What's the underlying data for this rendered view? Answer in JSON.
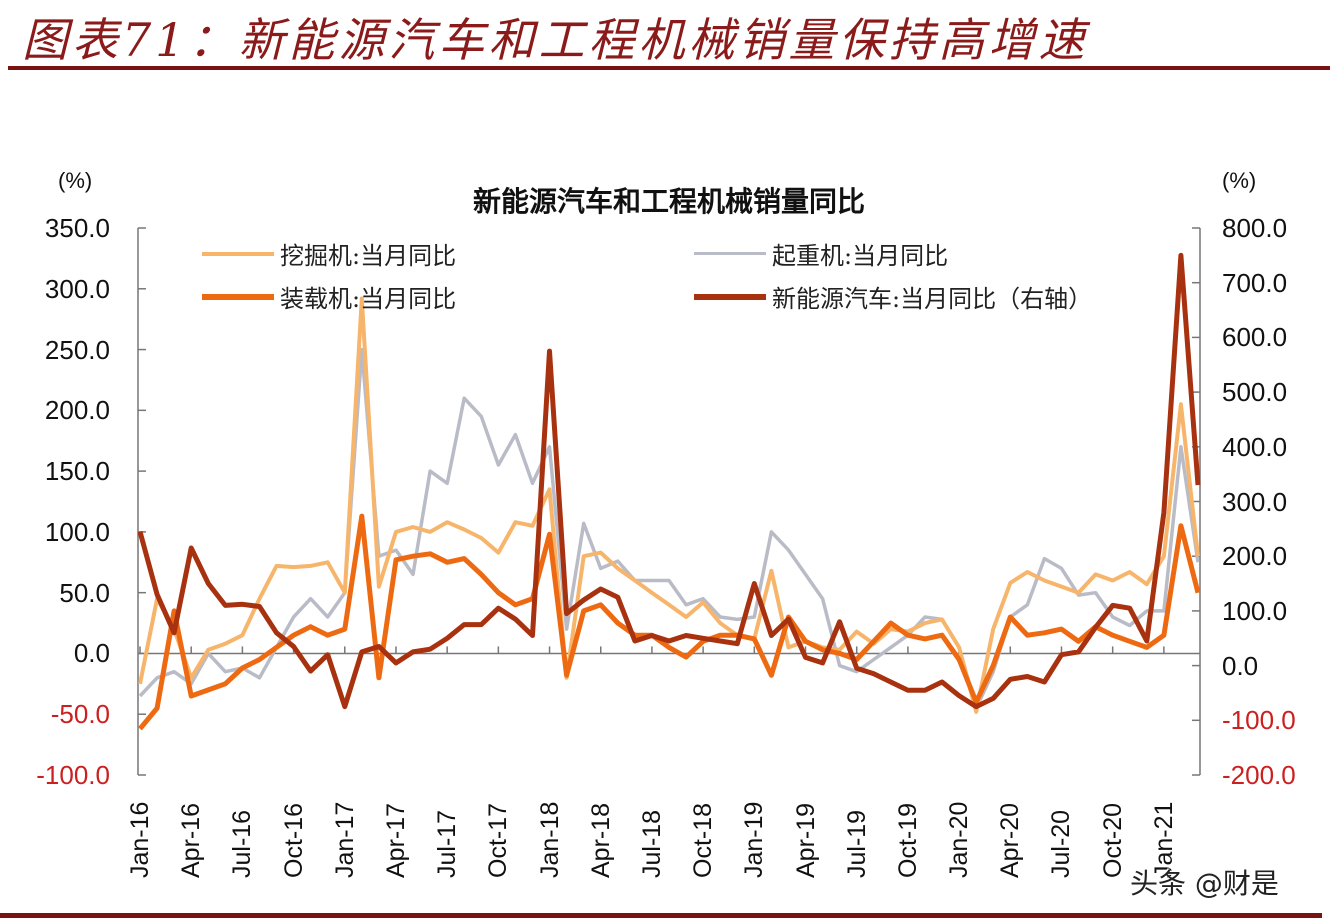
{
  "figure": {
    "title": "图表71：新能源汽车和工程机械销量保持高增速",
    "watermark": "头条 @财是"
  },
  "colors": {
    "excavator": "#f6b56a",
    "crane": "#b9bcc7",
    "loader": "#ee6a12",
    "nev": "#a8320f",
    "frame": "#7a1212",
    "negative_tick": "#cc1f1f"
  },
  "chart_data": {
    "type": "line",
    "title": "新能源汽车和工程机械销量同比",
    "xlabel": "",
    "ylabel": "(%)",
    "ylabel_right": "(%)",
    "ylim": [
      -100,
      350
    ],
    "ylim_right": [
      -200,
      800
    ],
    "yticks": [
      "350.0",
      "300.0",
      "250.0",
      "200.0",
      "150.0",
      "100.0",
      "50.0",
      "0.0",
      "-50.0",
      "-100.0"
    ],
    "yticks_right": [
      "800.0",
      "700.0",
      "600.0",
      "500.0",
      "400.0",
      "300.0",
      "200.0",
      "100.0",
      "0.0",
      "-100.0",
      "-200.0"
    ],
    "xtick_labels": [
      "Jan-16",
      "Apr-16",
      "Jul-16",
      "Oct-16",
      "Jan-17",
      "Apr-17",
      "Jul-17",
      "Oct-17",
      "Jan-18",
      "Apr-18",
      "Jul-18",
      "Oct-18",
      "Jan-19",
      "Apr-19",
      "Jul-19",
      "Oct-19",
      "Jan-20",
      "Apr-20",
      "Jul-20",
      "Oct-20",
      "Jan-21"
    ],
    "grid": false,
    "legend_position": "top (inside plot)",
    "x": [
      "Jan-16",
      "Feb-16",
      "Mar-16",
      "Apr-16",
      "May-16",
      "Jun-16",
      "Jul-16",
      "Aug-16",
      "Sep-16",
      "Oct-16",
      "Nov-16",
      "Dec-16",
      "Jan-17",
      "Feb-17",
      "Mar-17",
      "Apr-17",
      "May-17",
      "Jun-17",
      "Jul-17",
      "Aug-17",
      "Sep-17",
      "Oct-17",
      "Nov-17",
      "Dec-17",
      "Jan-18",
      "Feb-18",
      "Mar-18",
      "Apr-18",
      "May-18",
      "Jun-18",
      "Jul-18",
      "Aug-18",
      "Sep-18",
      "Oct-18",
      "Nov-18",
      "Dec-18",
      "Jan-19",
      "Feb-19",
      "Mar-19",
      "Apr-19",
      "May-19",
      "Jun-19",
      "Jul-19",
      "Aug-19",
      "Sep-19",
      "Oct-19",
      "Nov-19",
      "Dec-19",
      "Jan-20",
      "Feb-20",
      "Mar-20",
      "Apr-20",
      "May-20",
      "Jun-20",
      "Jul-20",
      "Aug-20",
      "Sep-20",
      "Oct-20",
      "Nov-20",
      "Dec-20",
      "Jan-21",
      "Feb-21",
      "Mar-21"
    ],
    "series": [
      {
        "name": "挖掘机:当月同比",
        "axis": "left",
        "values": [
          -25,
          45,
          20,
          -20,
          3,
          8,
          15,
          45,
          72,
          71,
          72,
          75,
          50,
          292,
          55,
          100,
          104,
          100,
          108,
          102,
          95,
          83,
          108,
          105,
          135,
          -20,
          80,
          83,
          70,
          60,
          50,
          40,
          30,
          42,
          25,
          15,
          12,
          68,
          5,
          10,
          5,
          3,
          18,
          8,
          20,
          18,
          25,
          28,
          5,
          -48,
          20,
          58,
          67,
          60,
          55,
          50,
          65,
          60,
          67,
          57,
          80,
          205,
          80
        ],
        "display_note": "light orange line"
      },
      {
        "name": "起重机:当月同比",
        "axis": "left",
        "values": [
          -35,
          -20,
          -15,
          -25,
          0,
          -15,
          -12,
          -20,
          5,
          30,
          45,
          30,
          50,
          250,
          80,
          85,
          65,
          150,
          140,
          210,
          195,
          155,
          180,
          140,
          170,
          20,
          107,
          70,
          76,
          60,
          60,
          60,
          40,
          45,
          30,
          28,
          30,
          100,
          85,
          65,
          45,
          -10,
          -15,
          -5,
          5,
          15,
          30,
          28,
          5,
          -45,
          -15,
          30,
          40,
          78,
          70,
          48,
          50,
          30,
          23,
          35,
          35,
          170,
          75
        ],
        "display_note": "grey line"
      },
      {
        "name": "装载机:当月同比",
        "axis": "left",
        "values": [
          -62,
          -45,
          35,
          -35,
          -30,
          -25,
          -12,
          -5,
          5,
          15,
          22,
          15,
          20,
          113,
          -20,
          77,
          80,
          82,
          75,
          78,
          65,
          50,
          40,
          45,
          98,
          -18,
          35,
          40,
          25,
          15,
          15,
          5,
          -3,
          10,
          15,
          15,
          12,
          -18,
          30,
          10,
          3,
          0,
          -5,
          10,
          25,
          15,
          12,
          15,
          -5,
          -40,
          -10,
          30,
          15,
          17,
          20,
          10,
          22,
          15,
          10,
          5,
          15,
          105,
          50
        ],
        "display_note": "orange line"
      },
      {
        "name": "新能源汽车:当月同比（右轴）",
        "axis": "right",
        "values": [
          245,
          130,
          60,
          215,
          150,
          110,
          112,
          108,
          60,
          35,
          -10,
          20,
          -75,
          25,
          35,
          5,
          25,
          30,
          50,
          75,
          75,
          105,
          85,
          55,
          575,
          95,
          120,
          140,
          125,
          45,
          55,
          45,
          55,
          50,
          45,
          40,
          150,
          55,
          85,
          15,
          5,
          80,
          -5,
          -15,
          -30,
          -45,
          -45,
          -30,
          -55,
          -75,
          -60,
          -25,
          -20,
          -30,
          20,
          25,
          70,
          110,
          105,
          45,
          280,
          750,
          330
        ],
        "display_note": "dark red-brown line, plotted on right axis"
      }
    ]
  },
  "legend": {
    "items": [
      {
        "label": "挖掘机:当月同比",
        "color": "#f6b56a"
      },
      {
        "label": "起重机:当月同比",
        "color": "#b9bcc7"
      },
      {
        "label": "装载机:当月同比",
        "color": "#ee6a12"
      },
      {
        "label": "新能源汽车:当月同比（右轴）",
        "color": "#a8320f"
      }
    ]
  },
  "axes": {
    "left_unit": "(%)",
    "right_unit": "(%)"
  }
}
